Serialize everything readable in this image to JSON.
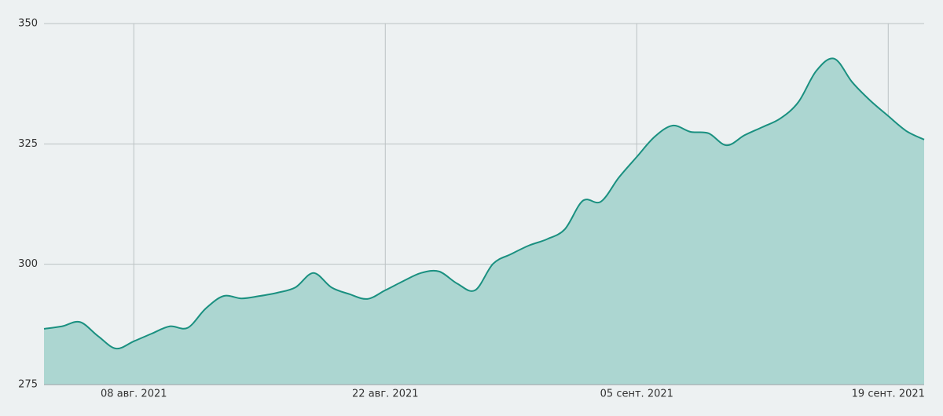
{
  "chart_data": {
    "type": "area",
    "x": [
      "2021-08-03",
      "2021-08-04",
      "2021-08-05",
      "2021-08-06",
      "2021-08-07",
      "2021-08-08",
      "2021-08-09",
      "2021-08-10",
      "2021-08-11",
      "2021-08-12",
      "2021-08-13",
      "2021-08-14",
      "2021-08-15",
      "2021-08-16",
      "2021-08-17",
      "2021-08-18",
      "2021-08-19",
      "2021-08-20",
      "2021-08-21",
      "2021-08-22",
      "2021-08-23",
      "2021-08-24",
      "2021-08-25",
      "2021-08-26",
      "2021-08-27",
      "2021-08-28",
      "2021-08-29",
      "2021-08-30",
      "2021-08-31",
      "2021-09-01",
      "2021-09-02",
      "2021-09-03",
      "2021-09-04",
      "2021-09-05",
      "2021-09-06",
      "2021-09-07",
      "2021-09-08",
      "2021-09-09",
      "2021-09-10",
      "2021-09-11",
      "2021-09-12",
      "2021-09-13",
      "2021-09-14",
      "2021-09-15",
      "2021-09-16",
      "2021-09-17",
      "2021-09-18",
      "2021-09-19",
      "2021-09-20",
      "2021-09-21"
    ],
    "values": [
      286.6,
      287.1,
      288.0,
      285.1,
      282.5,
      284.0,
      285.6,
      287.1,
      286.8,
      290.8,
      293.4,
      292.9,
      293.4,
      294.1,
      295.2,
      298.2,
      295.2,
      293.8,
      292.8,
      294.6,
      296.5,
      298.2,
      298.5,
      296.0,
      294.6,
      300.1,
      302.1,
      303.9,
      305.2,
      307.3,
      313.2,
      313.0,
      318.0,
      322.3,
      326.5,
      328.8,
      327.5,
      327.2,
      324.7,
      326.8,
      328.5,
      330.3,
      333.7,
      340.2,
      342.7,
      337.8,
      334.0,
      330.8,
      327.7,
      325.9
    ],
    "color": "#1a9080",
    "fill": "#acd6d1",
    "xlim": [
      "2021-08-03",
      "2021-09-21"
    ],
    "xticks": [
      {
        "value": "2021-08-08",
        "label": "08 авг. 2021"
      },
      {
        "value": "2021-08-22",
        "label": "22 авг. 2021"
      },
      {
        "value": "2021-09-05",
        "label": "05 сент. 2021"
      },
      {
        "value": "2021-09-19",
        "label": "19 сент. 2021"
      }
    ],
    "ylim": [
      275,
      350
    ],
    "yticks": [
      275,
      300,
      325,
      350
    ],
    "grid": true
  }
}
